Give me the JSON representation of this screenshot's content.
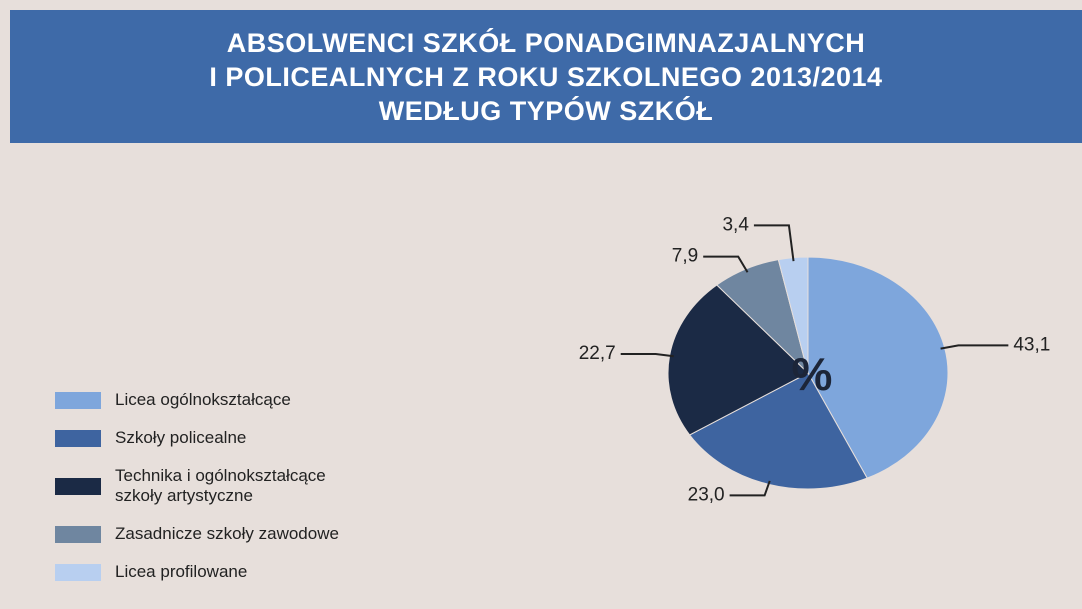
{
  "chart_data": {
    "type": "pie",
    "title": "ABSOLWENCI SZKÓŁ PONADGIMNAZJALNYCH\nI POLICEALNYCH Z ROKU SZKOLNEGO 2013/2014\nWEDŁUG TYPÓW SZKÓŁ",
    "center_label": "%",
    "categories": [
      "Licea ogólnokształcące",
      "Szkoły policealne",
      "Technika i ogólnokształcące szkoły artystyczne",
      "Zasadnicze szkoły zawodowe",
      "Licea profilowane"
    ],
    "values": [
      43.1,
      23.0,
      22.7,
      7.9,
      3.4
    ],
    "value_labels": [
      "43,1",
      "23,0",
      "22,7",
      "7,9",
      "3,4"
    ],
    "colors": [
      "#7ea6dc",
      "#3e64a0",
      "#1b2a45",
      "#6f86a0",
      "#b8cff0"
    ],
    "legend": "left"
  }
}
